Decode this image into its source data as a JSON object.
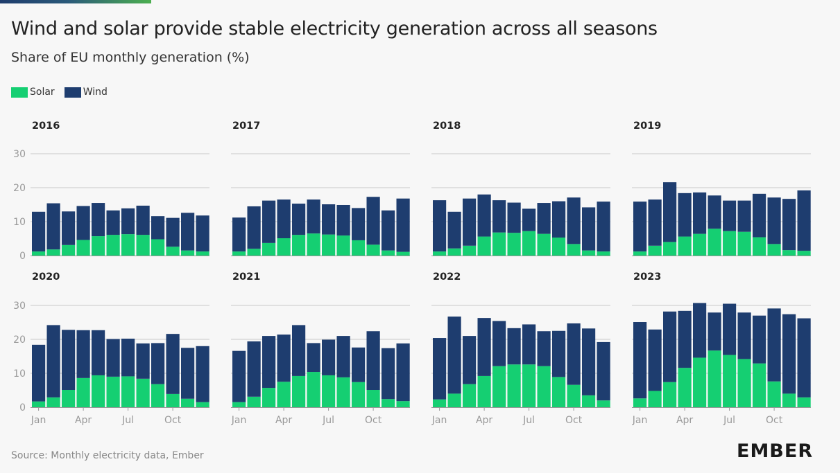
{
  "title": "Wind and solar provide stable electricity generation across all seasons",
  "subtitle": "Share of EU monthly generation (%)",
  "legend": [
    {
      "label": "Solar",
      "color": "#15cf72"
    },
    {
      "label": "Wind",
      "color": "#1e3d6f"
    }
  ],
  "source": "Source: Monthly electricity data, Ember",
  "logo": "EMBER",
  "chart_data": {
    "type": "bar",
    "stacked": true,
    "y_ticks": [
      0,
      10,
      20,
      30
    ],
    "ylim": [
      0,
      30
    ],
    "x_tick_labels": [
      "Jan",
      "Apr",
      "Jul",
      "Oct"
    ],
    "x_tick_months": [
      0,
      3,
      6,
      9
    ],
    "grid": true,
    "legend_position": "top-left",
    "colors": {
      "Solar": "#15cf72",
      "Wind": "#1e3d6f"
    },
    "panels": [
      {
        "year": "2016",
        "solar": [
          1.2,
          1.8,
          3.1,
          4.6,
          5.7,
          6.1,
          6.3,
          6.1,
          4.8,
          2.6,
          1.5,
          1.2
        ],
        "wind": [
          11.7,
          13.6,
          9.9,
          10.0,
          9.8,
          7.2,
          7.6,
          8.6,
          6.8,
          8.5,
          11.1,
          10.6
        ]
      },
      {
        "year": "2017",
        "solar": [
          1.2,
          2.0,
          3.7,
          5.1,
          6.1,
          6.5,
          6.2,
          5.9,
          4.5,
          3.2,
          1.5,
          1.1
        ],
        "wind": [
          10.0,
          12.5,
          12.5,
          11.4,
          9.2,
          10.0,
          8.9,
          9.0,
          9.5,
          14.1,
          11.8,
          15.7
        ]
      },
      {
        "year": "2018",
        "solar": [
          1.2,
          2.1,
          2.9,
          5.6,
          6.8,
          6.7,
          7.2,
          6.4,
          5.3,
          3.4,
          1.5,
          1.2
        ],
        "wind": [
          15.1,
          10.8,
          13.9,
          12.4,
          9.5,
          8.9,
          6.6,
          9.1,
          10.7,
          13.7,
          12.7,
          14.7
        ]
      },
      {
        "year": "2019",
        "solar": [
          1.2,
          2.9,
          4.0,
          5.6,
          6.4,
          7.9,
          7.2,
          7.0,
          5.4,
          3.4,
          1.6,
          1.4
        ],
        "wind": [
          14.7,
          13.6,
          17.6,
          12.8,
          12.2,
          9.8,
          9.0,
          9.2,
          12.8,
          13.7,
          15.1,
          17.8
        ]
      },
      {
        "year": "2020",
        "solar": [
          1.7,
          2.9,
          5.1,
          8.6,
          9.4,
          9.0,
          9.1,
          8.4,
          6.8,
          3.9,
          2.5,
          1.5
        ],
        "wind": [
          16.7,
          21.3,
          17.7,
          14.1,
          13.3,
          11.1,
          11.1,
          10.4,
          12.1,
          17.7,
          15.0,
          16.5
        ]
      },
      {
        "year": "2021",
        "solar": [
          1.5,
          3.1,
          5.7,
          7.5,
          9.2,
          10.4,
          9.4,
          8.8,
          7.4,
          5.1,
          2.4,
          1.8
        ],
        "wind": [
          15.1,
          16.3,
          15.3,
          13.9,
          15.0,
          8.5,
          10.5,
          12.2,
          10.2,
          17.3,
          15.0,
          17.0
        ]
      },
      {
        "year": "2022",
        "solar": [
          2.3,
          4.0,
          6.8,
          9.2,
          12.1,
          12.6,
          12.6,
          12.1,
          8.9,
          6.6,
          3.5,
          2.0
        ],
        "wind": [
          18.1,
          22.7,
          14.2,
          17.1,
          13.3,
          10.7,
          11.8,
          10.3,
          13.6,
          18.1,
          19.7,
          17.2
        ]
      },
      {
        "year": "2023",
        "solar": [
          2.6,
          4.8,
          7.4,
          11.6,
          14.6,
          16.7,
          15.4,
          14.2,
          12.9,
          7.6,
          4.0,
          2.9
        ],
        "wind": [
          22.5,
          18.1,
          20.8,
          16.8,
          16.1,
          11.2,
          15.1,
          13.7,
          14.1,
          21.5,
          23.4,
          23.3
        ]
      }
    ]
  }
}
